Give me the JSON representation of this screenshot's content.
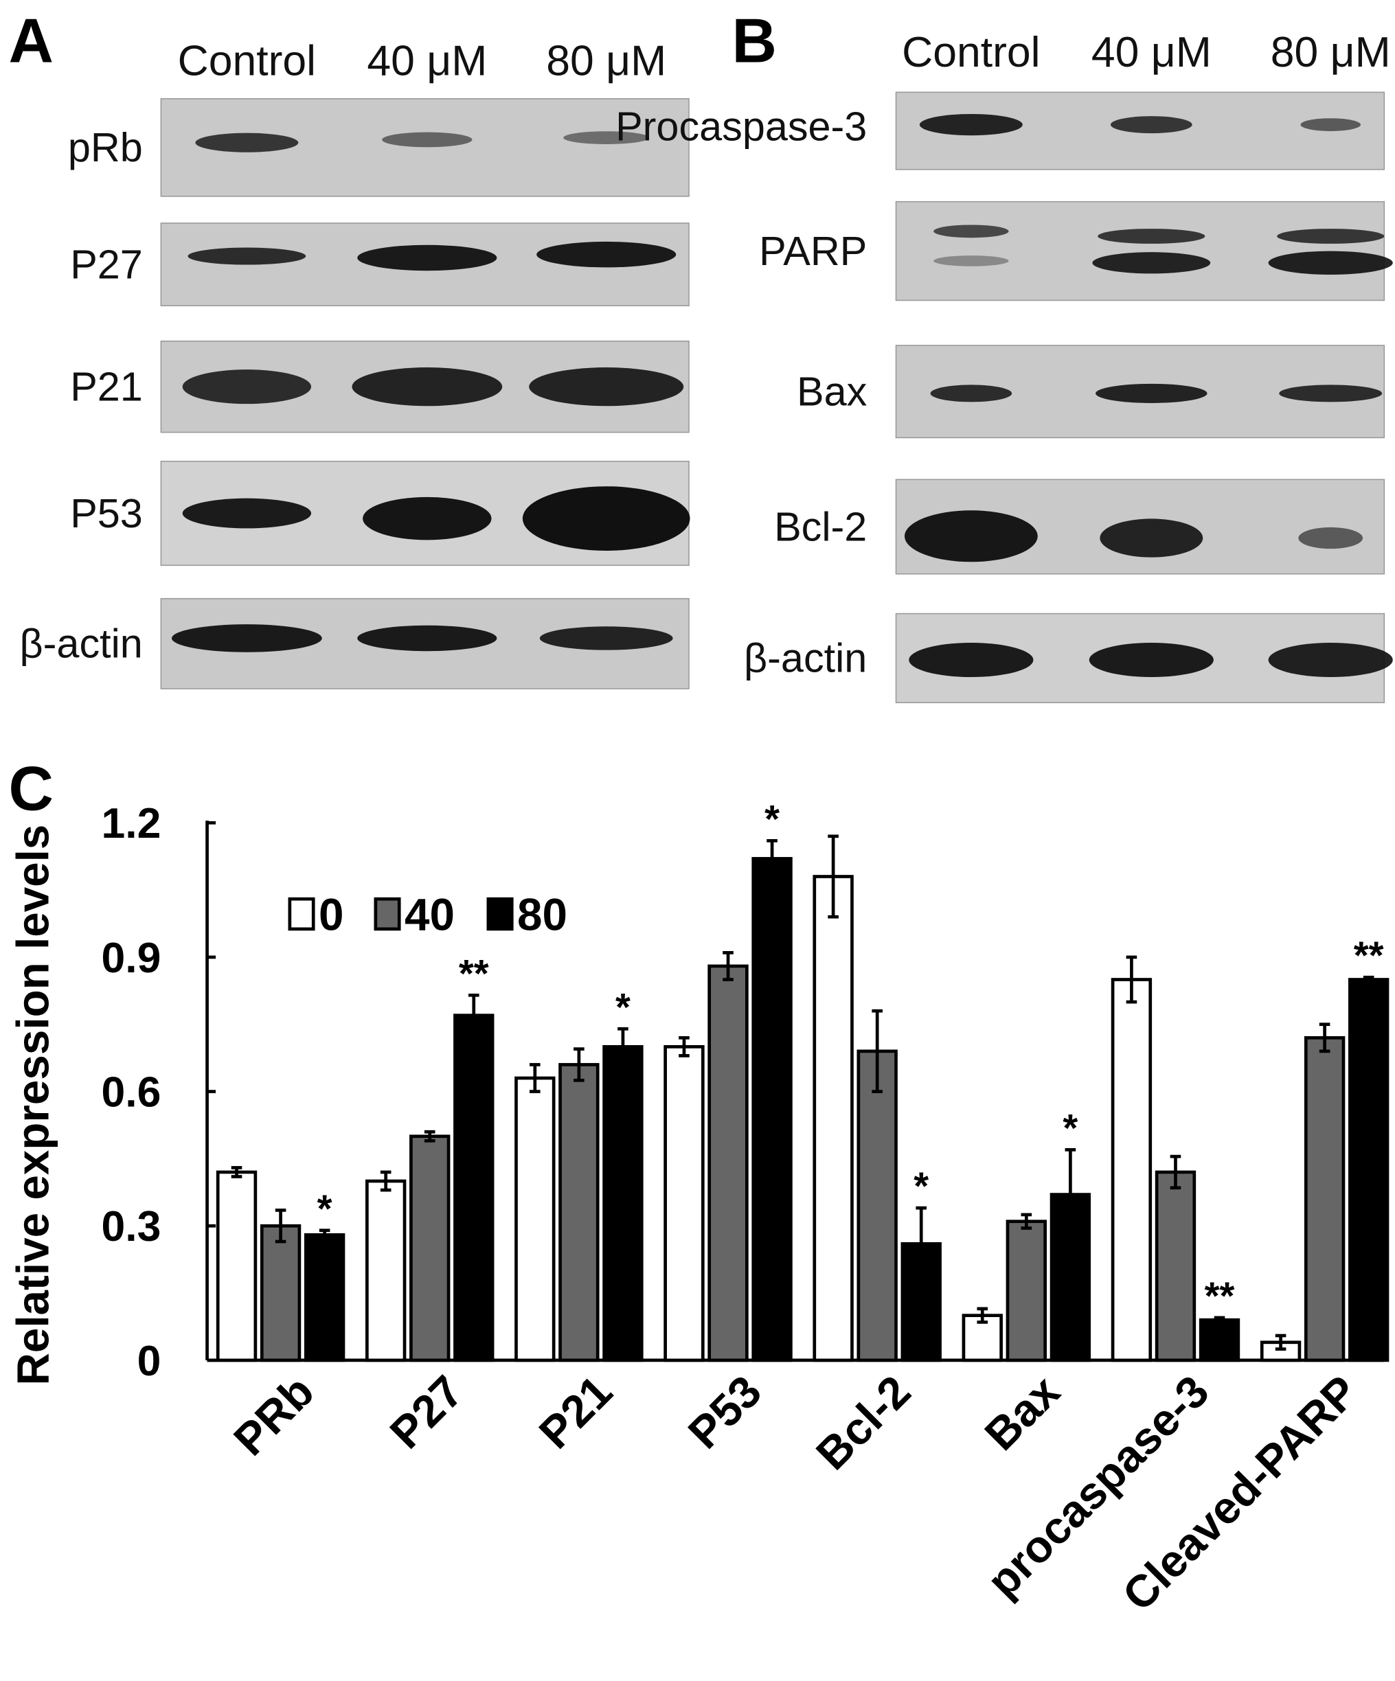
{
  "panel_a": {
    "label": "A",
    "columns": [
      "Control",
      "40 μM",
      "80 μM"
    ],
    "rows": [
      "pRb",
      "P27",
      "P21",
      "P53",
      "β-actin"
    ]
  },
  "panel_b": {
    "label": "B",
    "columns": [
      "Control",
      "40 μM",
      "80 μM"
    ],
    "rows": [
      "Procaspase-3",
      "PARP",
      "Bax",
      "Bcl-2",
      "β-actin"
    ]
  },
  "panel_c": {
    "label": "C"
  },
  "chart_data": {
    "type": "bar",
    "title": "",
    "xlabel": "",
    "ylabel": "Relative expression levels",
    "ylim": [
      0,
      1.2
    ],
    "yticks": [
      "0",
      "0.3",
      "0.6",
      "0.9",
      "1.2"
    ],
    "legend_placement": "top-left",
    "categories": [
      "PRb",
      "P27",
      "P21",
      "P53",
      "Bcl-2",
      "Bax",
      "procaspase-3",
      "Cleaved-PARP"
    ],
    "series": [
      {
        "name": "0",
        "color": "#ffffff",
        "values": [
          0.42,
          0.4,
          0.63,
          0.7,
          1.08,
          0.1,
          0.85,
          0.04
        ],
        "errors": [
          0.01,
          0.02,
          0.03,
          0.02,
          0.09,
          0.015,
          0.05,
          0.015
        ]
      },
      {
        "name": "40",
        "color": "#666666",
        "values": [
          0.3,
          0.5,
          0.66,
          0.88,
          0.69,
          0.31,
          0.42,
          0.72
        ],
        "errors": [
          0.035,
          0.01,
          0.035,
          0.03,
          0.09,
          0.015,
          0.035,
          0.03
        ]
      },
      {
        "name": "80",
        "color": "#000000",
        "values": [
          0.28,
          0.77,
          0.7,
          1.12,
          0.26,
          0.37,
          0.09,
          0.85
        ],
        "errors": [
          0.01,
          0.045,
          0.04,
          0.04,
          0.08,
          0.1,
          0.005,
          0.005
        ]
      }
    ],
    "significance": [
      "*",
      "**",
      "*",
      "*",
      "*",
      "*",
      "**",
      "**"
    ]
  }
}
